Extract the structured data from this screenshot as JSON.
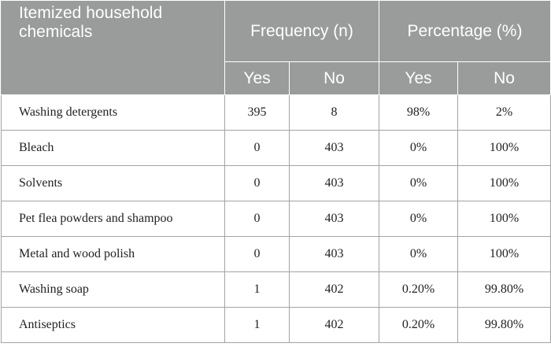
{
  "table": {
    "header": {
      "item_label": "Itemized household chemicals",
      "frequency_label": "Frequency (n)",
      "percentage_label": "Percentage (%)",
      "yes_label": "Yes",
      "no_label": "No"
    },
    "rows": [
      {
        "item": "Washing detergents",
        "freq_yes": "395",
        "freq_no": "8",
        "pct_yes": "98%",
        "pct_no": "2%"
      },
      {
        "item": "Bleach",
        "freq_yes": "0",
        "freq_no": "403",
        "pct_yes": "0%",
        "pct_no": "100%"
      },
      {
        "item": "Solvents",
        "freq_yes": "0",
        "freq_no": "403",
        "pct_yes": "0%",
        "pct_no": "100%"
      },
      {
        "item": "Pet flea powders and shampoo",
        "freq_yes": "0",
        "freq_no": "403",
        "pct_yes": "0%",
        "pct_no": "100%"
      },
      {
        "item": "Metal and wood polish",
        "freq_yes": "0",
        "freq_no": "403",
        "pct_yes": "0%",
        "pct_no": "100%"
      },
      {
        "item": "Washing soap",
        "freq_yes": "1",
        "freq_no": "402",
        "pct_yes": "0.20%",
        "pct_no": "99.80%"
      },
      {
        "item": "Antiseptics",
        "freq_yes": "1",
        "freq_no": "402",
        "pct_yes": "0.20%",
        "pct_no": "99.80%"
      }
    ]
  }
}
